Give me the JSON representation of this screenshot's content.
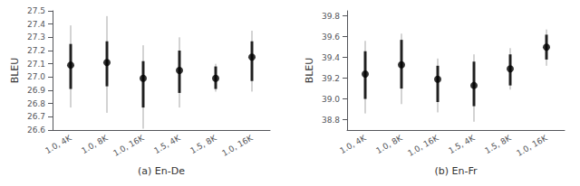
{
  "chart_data": [
    {
      "type": "scatter",
      "xlabel": "(a) En-De",
      "ylabel": "BLEU",
      "categories": [
        "1.0, 4K",
        "1.0, 8K",
        "1.0, 16K",
        "1.5, 4K",
        "1.5, 8K",
        "1.0, 16K"
      ],
      "values": [
        27.09,
        27.11,
        26.99,
        27.05,
        26.99,
        27.15
      ],
      "err_inner_lo": [
        0.18,
        0.18,
        0.22,
        0.17,
        0.08,
        0.18
      ],
      "err_inner_hi": [
        0.16,
        0.16,
        0.13,
        0.15,
        0.09,
        0.12
      ],
      "err_outer_lo": [
        0.32,
        0.38,
        0.38,
        0.28,
        0.1,
        0.26
      ],
      "err_outer_hi": [
        0.3,
        0.35,
        0.25,
        0.25,
        0.11,
        0.2
      ],
      "ylim": [
        26.6,
        27.5
      ],
      "yticks": [
        26.6,
        26.7,
        26.8,
        26.9,
        {
          "value": 27.0,
          "label": "27.0"
        },
        27.1,
        27.2,
        27.3,
        27.4,
        27.5
      ],
      "grid": false,
      "color": "#000000"
    },
    {
      "type": "scatter",
      "xlabel": "(b) En-Fr",
      "ylabel": "BLEU",
      "categories": [
        "1.0, 4K",
        "1.0, 8K",
        "1.0, 16K",
        "1.5, 4K",
        "1.5, 8K",
        "1.0, 16K"
      ],
      "values": [
        39.24,
        39.33,
        39.19,
        39.13,
        39.29,
        39.5
      ],
      "err_inner_lo": [
        0.24,
        0.23,
        0.22,
        0.2,
        0.16,
        0.12
      ],
      "err_inner_hi": [
        0.22,
        0.24,
        0.13,
        0.23,
        0.14,
        0.12
      ],
      "err_outer_lo": [
        0.38,
        0.38,
        0.32,
        0.35,
        0.2,
        0.18
      ],
      "err_outer_hi": [
        0.32,
        0.3,
        0.2,
        0.3,
        0.2,
        0.17
      ],
      "ylim": [
        38.7,
        39.85
      ],
      "yticks": [
        38.8,
        {
          "value": 39.0,
          "label": "39.0"
        },
        39.2,
        39.4,
        39.6,
        39.8
      ],
      "grid": false,
      "color": "#000000"
    }
  ]
}
